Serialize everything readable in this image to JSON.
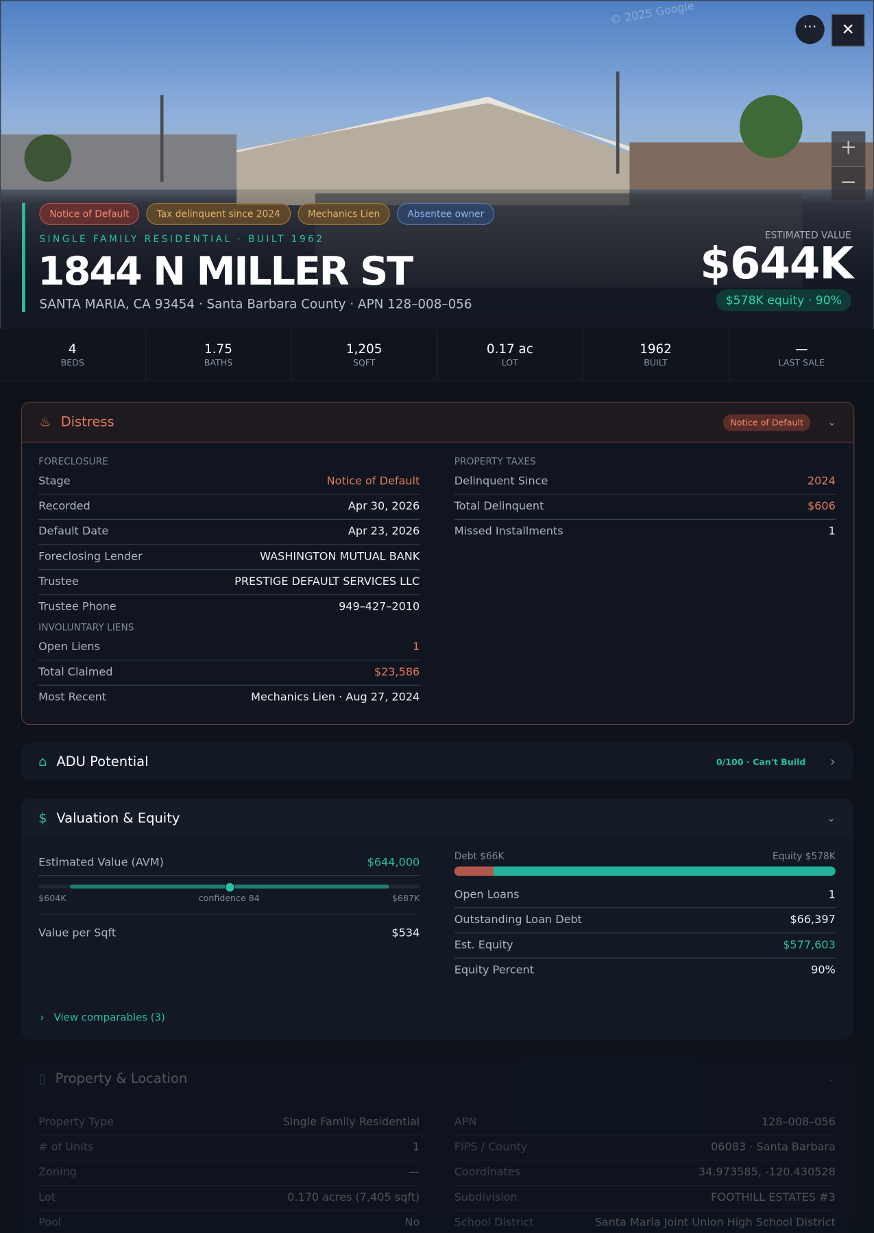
{
  "hero": {
    "watermark": "© 2025 Google",
    "tags": [
      "Notice of Default",
      "Tax delinquent since 2024",
      "Mechanics Lien",
      "Absentee owner"
    ],
    "subtitle": "SINGLE FAMILY RESIDENTIAL · BUILT 1962",
    "address": "1844 N MILLER ST",
    "location": "SANTA MARIA, CA 93454 · Santa Barbara County · APN 128–008–056",
    "estimate_label": "ESTIMATED VALUE",
    "estimate_value": "$644K",
    "equity_badge": "$578K equity · 90%"
  },
  "stats": [
    {
      "value": "4",
      "label": "BEDS"
    },
    {
      "value": "1.75",
      "label": "BATHS"
    },
    {
      "value": "1,205",
      "label": "SQFT"
    },
    {
      "value": "0.17 ac",
      "label": "LOT"
    },
    {
      "value": "1962",
      "label": "BUILT"
    },
    {
      "value": "—",
      "label": "LAST SALE"
    }
  ],
  "distress": {
    "title": "Distress",
    "badge": "Notice of Default",
    "foreclosure": {
      "heading": "FORECLOSURE",
      "rows": [
        {
          "label": "Stage",
          "value": "Notice of Default",
          "color": "#e8785f"
        },
        {
          "label": "Recorded",
          "value": "Apr 30, 2026"
        },
        {
          "label": "Default Date",
          "value": "Apr 23, 2026"
        },
        {
          "label": "Foreclosing Lender",
          "value": "WASHINGTON MUTUAL BANK"
        },
        {
          "label": "Trustee",
          "value": "PRESTIGE DEFAULT SERVICES LLC"
        },
        {
          "label": "Trustee Phone",
          "value": "949–427–2010"
        }
      ]
    },
    "liens": {
      "heading": "INVOLUNTARY LIENS",
      "rows": [
        {
          "label": "Open Liens",
          "value": "1",
          "color": "#e8785f"
        },
        {
          "label": "Total Claimed",
          "value": "$23,586",
          "color": "#e8785f"
        },
        {
          "label": "Most Recent",
          "value": "Mechanics Lien · Aug 27, 2024"
        }
      ]
    },
    "taxes": {
      "heading": "PROPERTY TAXES",
      "rows": [
        {
          "label": "Delinquent Since",
          "value": "2024",
          "color": "#e8785f"
        },
        {
          "label": "Total Delinquent",
          "value": "$606",
          "color": "#e8785f"
        },
        {
          "label": "Missed Installments",
          "value": "1"
        }
      ]
    }
  },
  "adu": {
    "title": "ADU Potential",
    "badge": "0/100 · Can't Build"
  },
  "valuation": {
    "title": "Valuation & Equity",
    "avm": {
      "label": "Estimated Value (AVM)",
      "value": "$644,000",
      "color": "#2bbfa4"
    },
    "range_low": "$604K",
    "confidence": "confidence 84",
    "range_high": "$687K",
    "left_rows": [
      {
        "label": "Value per Sqft",
        "value": "$534"
      }
    ],
    "debt_label": "Debt $66K",
    "equity_label": "Equity $578K",
    "right_rows": [
      {
        "label": "Open Loans",
        "value": "1"
      },
      {
        "label": "Outstanding Loan Debt",
        "value": "$66,397"
      },
      {
        "label": "Est. Equity",
        "value": "$577,603",
        "color": "#2bbfa4"
      },
      {
        "label": "Equity Percent",
        "value": "90%"
      }
    ],
    "link": "View comparables (3)"
  },
  "property": {
    "title": "Property & Location",
    "left_rows": [
      {
        "label": "Property Type",
        "value": "Single Family Residential"
      },
      {
        "label": "# of Units",
        "value": "1"
      },
      {
        "label": "Zoning",
        "value": "—"
      },
      {
        "label": "Lot",
        "value": "0.170 acres (7,405 sqft)"
      },
      {
        "label": "Pool",
        "value": "No"
      }
    ],
    "right_rows": [
      {
        "label": "APN",
        "value": "128–008–056"
      },
      {
        "label": "FIPS / County",
        "value": "06083 · Santa Barbara"
      },
      {
        "label": "Coordinates",
        "value": "34.973585, -120.430528"
      },
      {
        "label": "Subdivision",
        "value": "FOOTHILL ESTATES #3"
      },
      {
        "label": "School District",
        "value": "Santa Maria Joint Union High School District"
      }
    ]
  }
}
